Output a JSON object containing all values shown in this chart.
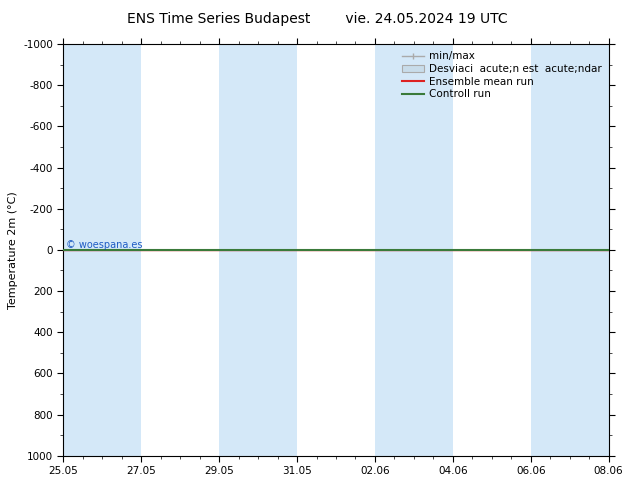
{
  "title_left": "ENS Time Series Budapest",
  "title_right": "vie. 24.05.2024 19 UTC",
  "ylabel": "Temperature 2m (°C)",
  "watermark": "© woespana.es",
  "xtick_labels": [
    "25.05",
    "27.05",
    "29.05",
    "31.05",
    "02.06",
    "04.06",
    "06.06",
    "08.06"
  ],
  "ytick_values": [
    -1000,
    -800,
    -600,
    -400,
    -200,
    0,
    200,
    400,
    600,
    800,
    1000
  ],
  "ylim_inverted": [
    -1000,
    1000
  ],
  "background_color": "#ffffff",
  "plot_bg_color": "#ffffff",
  "shaded_band_color": "#d4e8f8",
  "shaded_band_alpha": 1.0,
  "control_run_color": "#3a7a3a",
  "ensemble_mean_color": "#dd2222",
  "minmax_color": "#aaaaaa",
  "std_fill_color": "#c8dcea",
  "std_edge_color": "#aaaaaa",
  "title_fontsize": 10,
  "tick_fontsize": 7.5,
  "ylabel_fontsize": 8,
  "legend_fontsize": 7.5
}
